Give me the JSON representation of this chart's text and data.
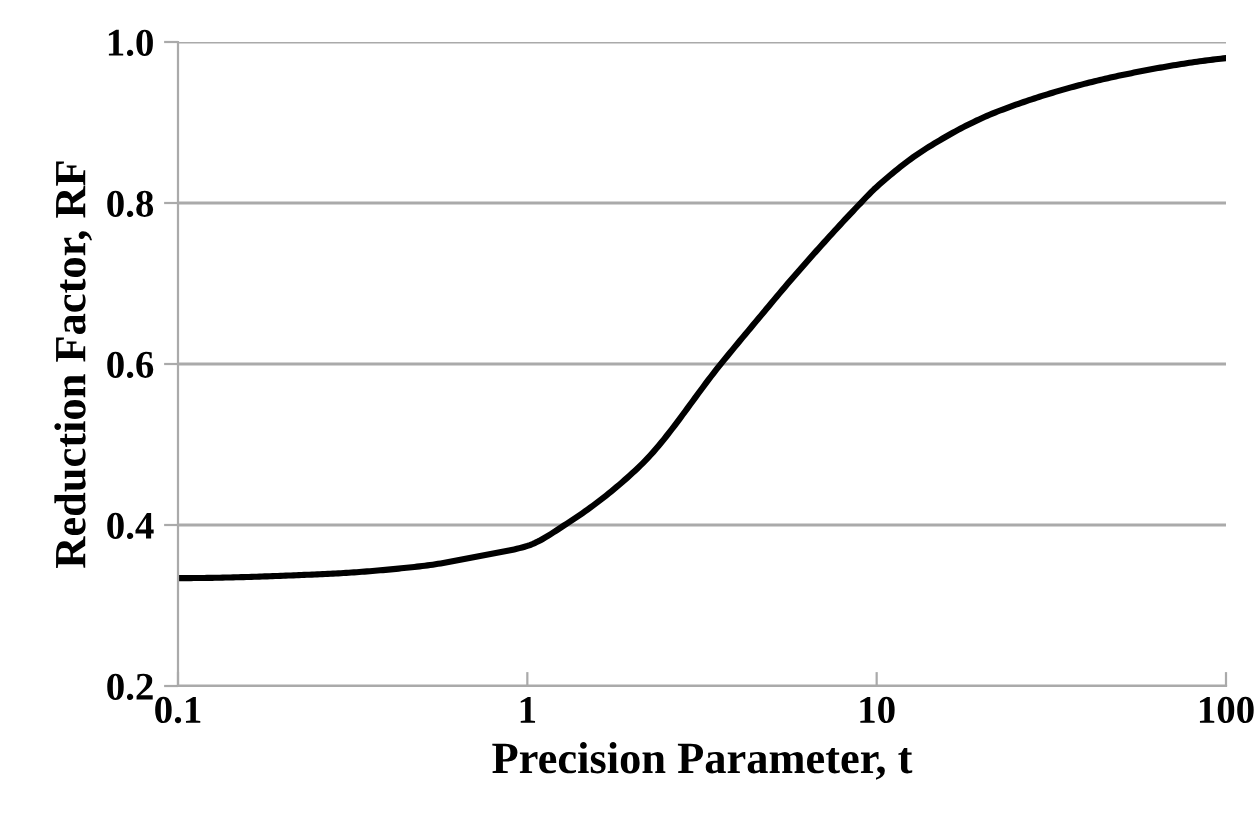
{
  "chart_data": {
    "type": "line",
    "xlabel": "Precision Parameter, t",
    "ylabel": "Reduction Factor, RF",
    "x": [
      0.1,
      0.26,
      0.5,
      0.74,
      1,
      1.28,
      2.12,
      3.58,
      4.66,
      5.83,
      9.0,
      10,
      13.9,
      22.6,
      51.8,
      100
    ],
    "series": [
      {
        "color": "#000000",
        "values": [
          0.334,
          0.339,
          0.349,
          0.362,
          0.374,
          0.4,
          0.475,
          0.6,
          0.66,
          0.71,
          0.8,
          0.82,
          0.868,
          0.915,
          0.96,
          0.98
        ]
      }
    ],
    "log": "x",
    "xlim": [
      0.1,
      100
    ],
    "xticks": [
      0.1,
      1,
      10,
      100
    ],
    "ylim": [
      0.2,
      1.0
    ],
    "yticks": [
      {
        "value": 0.2,
        "label": "0.2"
      },
      {
        "value": 0.4,
        "label": "0.4"
      },
      {
        "value": 0.6,
        "label": "0.6"
      },
      {
        "value": 0.8,
        "label": "0.8"
      },
      {
        "value": 1.0,
        "label": "1.0"
      }
    ],
    "grid": "y",
    "marker": "none",
    "line_style": "solid"
  }
}
